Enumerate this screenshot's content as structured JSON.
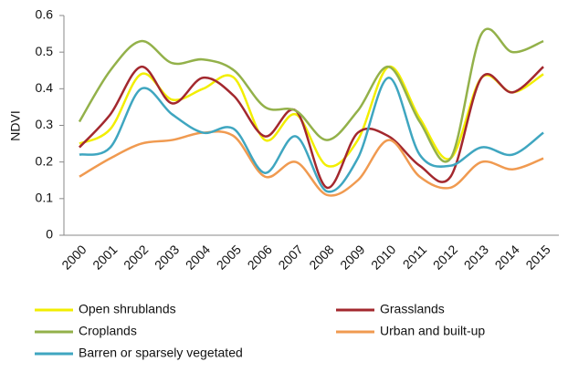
{
  "chart_data": {
    "type": "line",
    "y_label": "NDVI",
    "categories": [
      "2000",
      "2001",
      "2002",
      "2003",
      "2004",
      "2005",
      "2006",
      "2007",
      "2008",
      "2009",
      "2010",
      "2011",
      "2012",
      "2013",
      "2014",
      "2015"
    ],
    "series": [
      {
        "name": "Open shrublands",
        "color": "#f2ee00",
        "values": [
          0.25,
          0.29,
          0.44,
          0.37,
          0.4,
          0.43,
          0.26,
          0.33,
          0.19,
          0.26,
          0.46,
          0.32,
          0.21,
          0.43,
          0.39,
          0.44
        ]
      },
      {
        "name": "Grasslands",
        "color": "#a3282e",
        "values": [
          0.24,
          0.33,
          0.46,
          0.36,
          0.43,
          0.38,
          0.27,
          0.34,
          0.13,
          0.28,
          0.27,
          0.19,
          0.16,
          0.43,
          0.39,
          0.46
        ]
      },
      {
        "name": "Croplands",
        "color": "#93b14a",
        "values": [
          0.31,
          0.45,
          0.53,
          0.47,
          0.48,
          0.45,
          0.35,
          0.34,
          0.26,
          0.34,
          0.46,
          0.31,
          0.21,
          0.55,
          0.5,
          0.53
        ]
      },
      {
        "name": "Urban and built-up",
        "color": "#f09a50",
        "values": [
          0.16,
          0.21,
          0.25,
          0.26,
          0.28,
          0.27,
          0.16,
          0.2,
          0.11,
          0.15,
          0.26,
          0.16,
          0.13,
          0.2,
          0.18,
          0.21
        ]
      },
      {
        "name": "Barren or sparsely vegetated",
        "color": "#3fa6c0",
        "values": [
          0.22,
          0.24,
          0.4,
          0.33,
          0.28,
          0.29,
          0.17,
          0.27,
          0.12,
          0.21,
          0.43,
          0.22,
          0.19,
          0.24,
          0.22,
          0.28
        ]
      }
    ],
    "ylim": [
      0,
      0.6
    ],
    "yticks": [
      0,
      0.1,
      0.2,
      0.3,
      0.4,
      0.5,
      0.6
    ],
    "grid": false
  }
}
